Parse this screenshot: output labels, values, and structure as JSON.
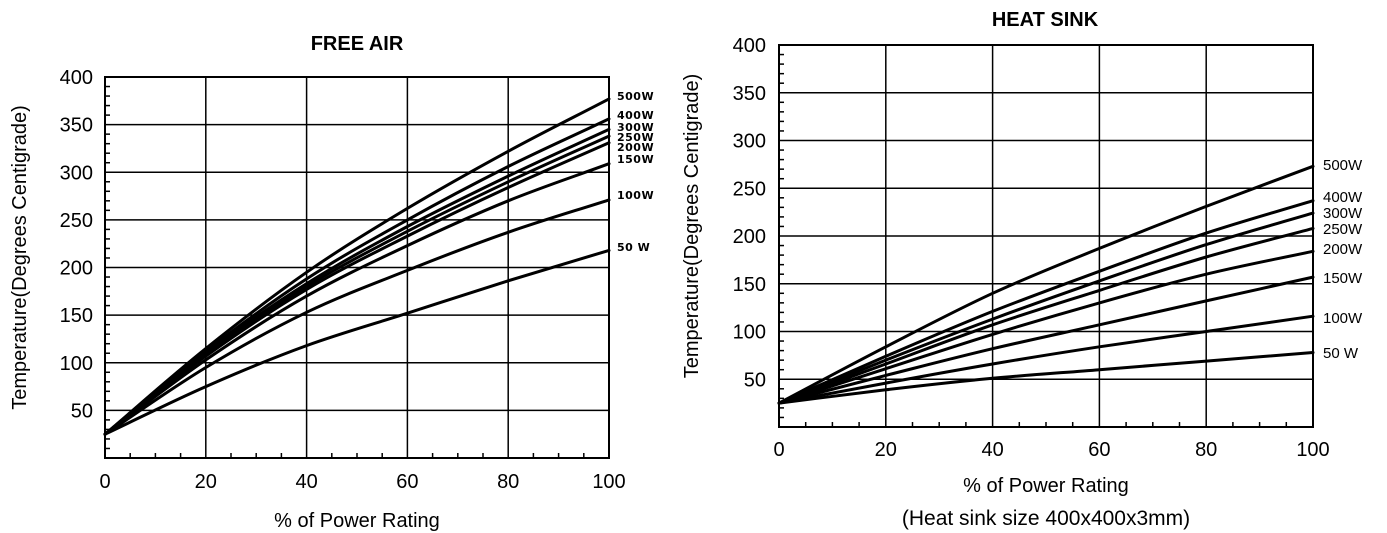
{
  "chart_data": [
    {
      "type": "line",
      "title": "FREE AIR",
      "xlabel": "% of Power Rating",
      "ylabel": "Temperature(Degrees Centigrade)",
      "xlim": [
        0,
        100
      ],
      "ylim": [
        0,
        400
      ],
      "x_ticks": [
        "0",
        "20",
        "40",
        "60",
        "80",
        "100"
      ],
      "y_ticks": [
        "50",
        "100",
        "150",
        "200",
        "250",
        "300",
        "350",
        "400"
      ],
      "grid": true,
      "x": [
        0,
        20,
        40,
        60,
        80,
        100
      ],
      "series": [
        {
          "name": "500W",
          "values": [
            25,
            115,
            195,
            262,
            322,
            377
          ]
        },
        {
          "name": "400W",
          "values": [
            25,
            112,
            188,
            250,
            306,
            356
          ]
        },
        {
          "name": "300W",
          "values": [
            25,
            110,
            183,
            243,
            296,
            345
          ]
        },
        {
          "name": "250W",
          "values": [
            25,
            108,
            180,
            238,
            290,
            338
          ]
        },
        {
          "name": "200W",
          "values": [
            25,
            107,
            177,
            233,
            284,
            331
          ]
        },
        {
          "name": "150W",
          "values": [
            25,
            103,
            170,
            223,
            270,
            309
          ]
        },
        {
          "name": "100W",
          "values": [
            25,
            95,
            153,
            197,
            237,
            271
          ]
        },
        {
          "name": "50 W",
          "values": [
            25,
            75,
            118,
            152,
            186,
            218
          ]
        }
      ]
    },
    {
      "type": "line",
      "title": "HEAT SINK",
      "xlabel": "% of Power Rating",
      "subtitle": "(Heat sink size 400x400x3mm)",
      "ylabel": "Temperature(Degrees Centigrade)",
      "xlim": [
        0,
        100
      ],
      "ylim": [
        0,
        400
      ],
      "x_ticks": [
        "0",
        "20",
        "40",
        "60",
        "80",
        "100"
      ],
      "y_ticks": [
        "50",
        "100",
        "150",
        "200",
        "250",
        "300",
        "350",
        "400"
      ],
      "grid": true,
      "x": [
        0,
        20,
        40,
        60,
        80,
        100
      ],
      "series": [
        {
          "name": "500W",
          "values": [
            25,
            84,
            140,
            187,
            231,
            273
          ]
        },
        {
          "name": "400W",
          "values": [
            25,
            74,
            121,
            163,
            203,
            237
          ]
        },
        {
          "name": "300W",
          "values": [
            25,
            70,
            113,
            153,
            191,
            224
          ]
        },
        {
          "name": "250W",
          "values": [
            25,
            66,
            107,
            143,
            178,
            208
          ]
        },
        {
          "name": "200W",
          "values": [
            25,
            61,
            97,
            130,
            160,
            184
          ]
        },
        {
          "name": "150W",
          "values": [
            25,
            54,
            82,
            107,
            132,
            157
          ]
        },
        {
          "name": "100W",
          "values": [
            25,
            46,
            66,
            84,
            100,
            116
          ]
        },
        {
          "name": "50 W",
          "values": [
            25,
            39,
            51,
            60,
            69,
            78
          ]
        }
      ]
    }
  ]
}
